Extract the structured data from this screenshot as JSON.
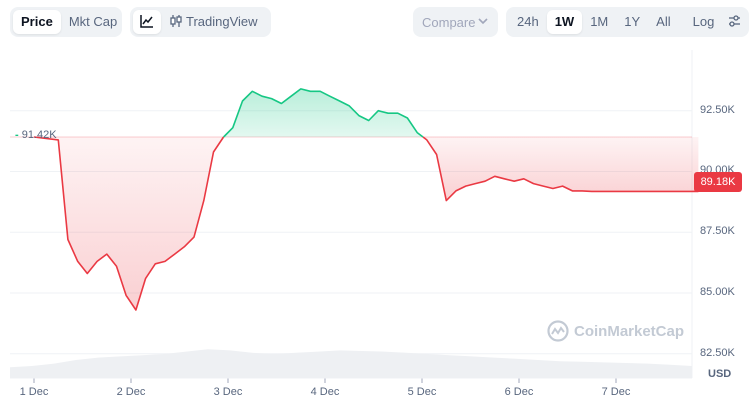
{
  "toolbar": {
    "price_label": "Price",
    "mktcap_label": "Mkt Cap",
    "tradingview_label": "TradingView",
    "compare_label": "Compare",
    "ranges": [
      "24h",
      "1W",
      "1M",
      "1Y",
      "All"
    ],
    "active_range": "1W",
    "log_label": "Log"
  },
  "chart_data": {
    "type": "area",
    "title": "",
    "xlabel": "",
    "ylabel": "USD",
    "currency_label": "USD",
    "x_ticks": [
      "1 Dec",
      "2 Dec",
      "3 Dec",
      "4 Dec",
      "5 Dec",
      "6 Dec",
      "7 Dec"
    ],
    "y_ticks": [
      "82.50K",
      "85.00K",
      "87.50K",
      "90.00K",
      "92.50K"
    ],
    "ylim": [
      81500,
      95000
    ],
    "baseline_value": 91420,
    "baseline_label": "91.42K",
    "current_value": 89180,
    "current_label": "89.18K",
    "watermark": "CoinMarketCap",
    "colors": {
      "up": "#16c784",
      "down": "#ea3943"
    },
    "series": [
      {
        "x": [
          0.0,
          0.25,
          0.35,
          0.45,
          0.55,
          0.65,
          0.75,
          0.85,
          0.95,
          1.05,
          1.15,
          1.25,
          1.35,
          1.45,
          1.55,
          1.65,
          1.75,
          1.85,
          1.95,
          2.05,
          2.15,
          2.25,
          2.35,
          2.45,
          2.55,
          2.65,
          2.75,
          2.85,
          2.95,
          3.05,
          3.15,
          3.25,
          3.35,
          3.45,
          3.55,
          3.65,
          3.75,
          3.85,
          3.95,
          4.05,
          4.15,
          4.25,
          4.35,
          4.45,
          4.55,
          4.65,
          4.75,
          4.85,
          4.95,
          5.05,
          5.15,
          5.25,
          5.35,
          5.45,
          5.55,
          5.65,
          5.75,
          5.85,
          5.95,
          6.05,
          6.15,
          6.25,
          6.35,
          6.45,
          6.55,
          6.65,
          6.75,
          6.85
        ],
        "values": [
          91420,
          91300,
          87200,
          86300,
          85800,
          86300,
          86600,
          86100,
          84900,
          84300,
          85600,
          86200,
          86300,
          86600,
          86900,
          87300,
          88800,
          90800,
          91400,
          91800,
          92900,
          93300,
          93100,
          93000,
          92800,
          93100,
          93400,
          93300,
          93300,
          93100,
          92900,
          92700,
          92300,
          92100,
          92500,
          92400,
          92400,
          92200,
          91600,
          91300,
          90700,
          88800,
          89200,
          89400,
          89500,
          89600,
          89800,
          89700,
          89600,
          89700,
          89500,
          89400,
          89300,
          89400,
          89200,
          89200,
          89180,
          89180,
          89180,
          89180,
          89180,
          89180,
          89180,
          89180,
          89180,
          89180,
          89180,
          89180
        ]
      }
    ],
    "volume": [
      0.18,
      0.2,
      0.24,
      0.3,
      0.34,
      0.36,
      0.38,
      0.4,
      0.44,
      0.48,
      0.46,
      0.42,
      0.4,
      0.42,
      0.44,
      0.46,
      0.45,
      0.44,
      0.42,
      0.4,
      0.38,
      0.36,
      0.34,
      0.32,
      0.3,
      0.28,
      0.27,
      0.26,
      0.25,
      0.24,
      0.22,
      0.2
    ]
  }
}
